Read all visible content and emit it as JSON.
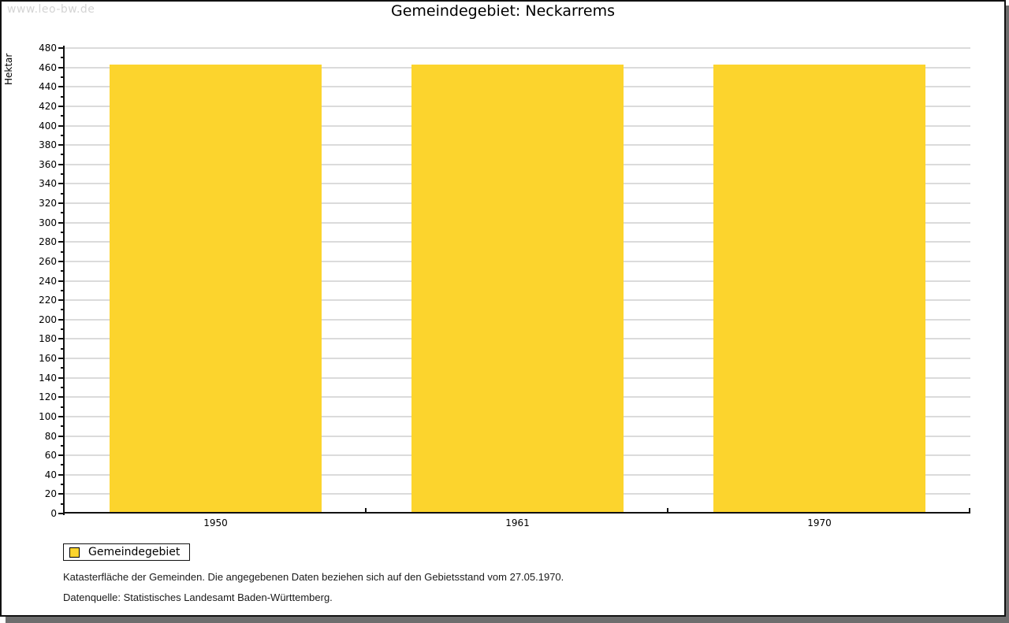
{
  "watermark": "www.leo-bw.de",
  "title": "Gemeindegebiet: Neckarrems",
  "chart_data": {
    "type": "bar",
    "title": "Gemeindegebiet: Neckarrems",
    "categories": [
      "1950",
      "1961",
      "1970"
    ],
    "values": [
      463,
      463,
      463
    ],
    "series_name": "Gemeindegebiet",
    "xlabel": "",
    "ylabel": "Hektar",
    "ylim": [
      0,
      480
    ],
    "ytick_step": 20,
    "minor_tick_step": 10,
    "grid": true,
    "legend_position": "bottom-left",
    "bar_color": "#fcd42d",
    "grid_color": "#dbdbdb"
  },
  "legend": {
    "label": "Gemeindegebiet",
    "swatch_color": "#fcd42d"
  },
  "footnotes": [
    "Katasterfläche der Gemeinden. Die angegebenen Daten beziehen sich auf den Gebietsstand vom 27.05.1970.",
    "Datenquelle: Statistisches Landesamt Baden-Württemberg."
  ]
}
